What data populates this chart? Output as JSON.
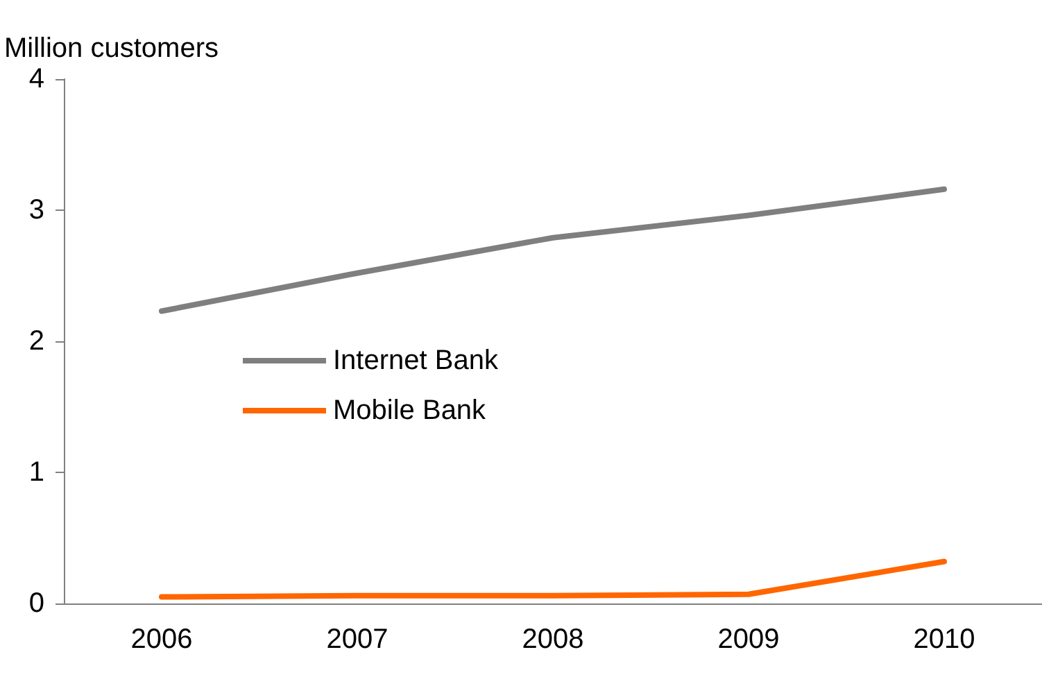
{
  "chart_data": {
    "type": "line",
    "ylabel": "Million customers",
    "categories": [
      "2006",
      "2007",
      "2008",
      "2009",
      "2010"
    ],
    "series": [
      {
        "name": "Internet Bank",
        "color": "#7f7f7f",
        "values": [
          2.23,
          2.52,
          2.79,
          2.96,
          3.16
        ]
      },
      {
        "name": "Mobile Bank",
        "color": "#ff6600",
        "values": [
          0.05,
          0.06,
          0.06,
          0.07,
          0.32
        ]
      }
    ],
    "ylim": [
      0,
      4
    ],
    "yticks": [
      0,
      1,
      2,
      3,
      4
    ],
    "grid": false,
    "legend": "center",
    "marker": "none",
    "line_style": "solid"
  }
}
